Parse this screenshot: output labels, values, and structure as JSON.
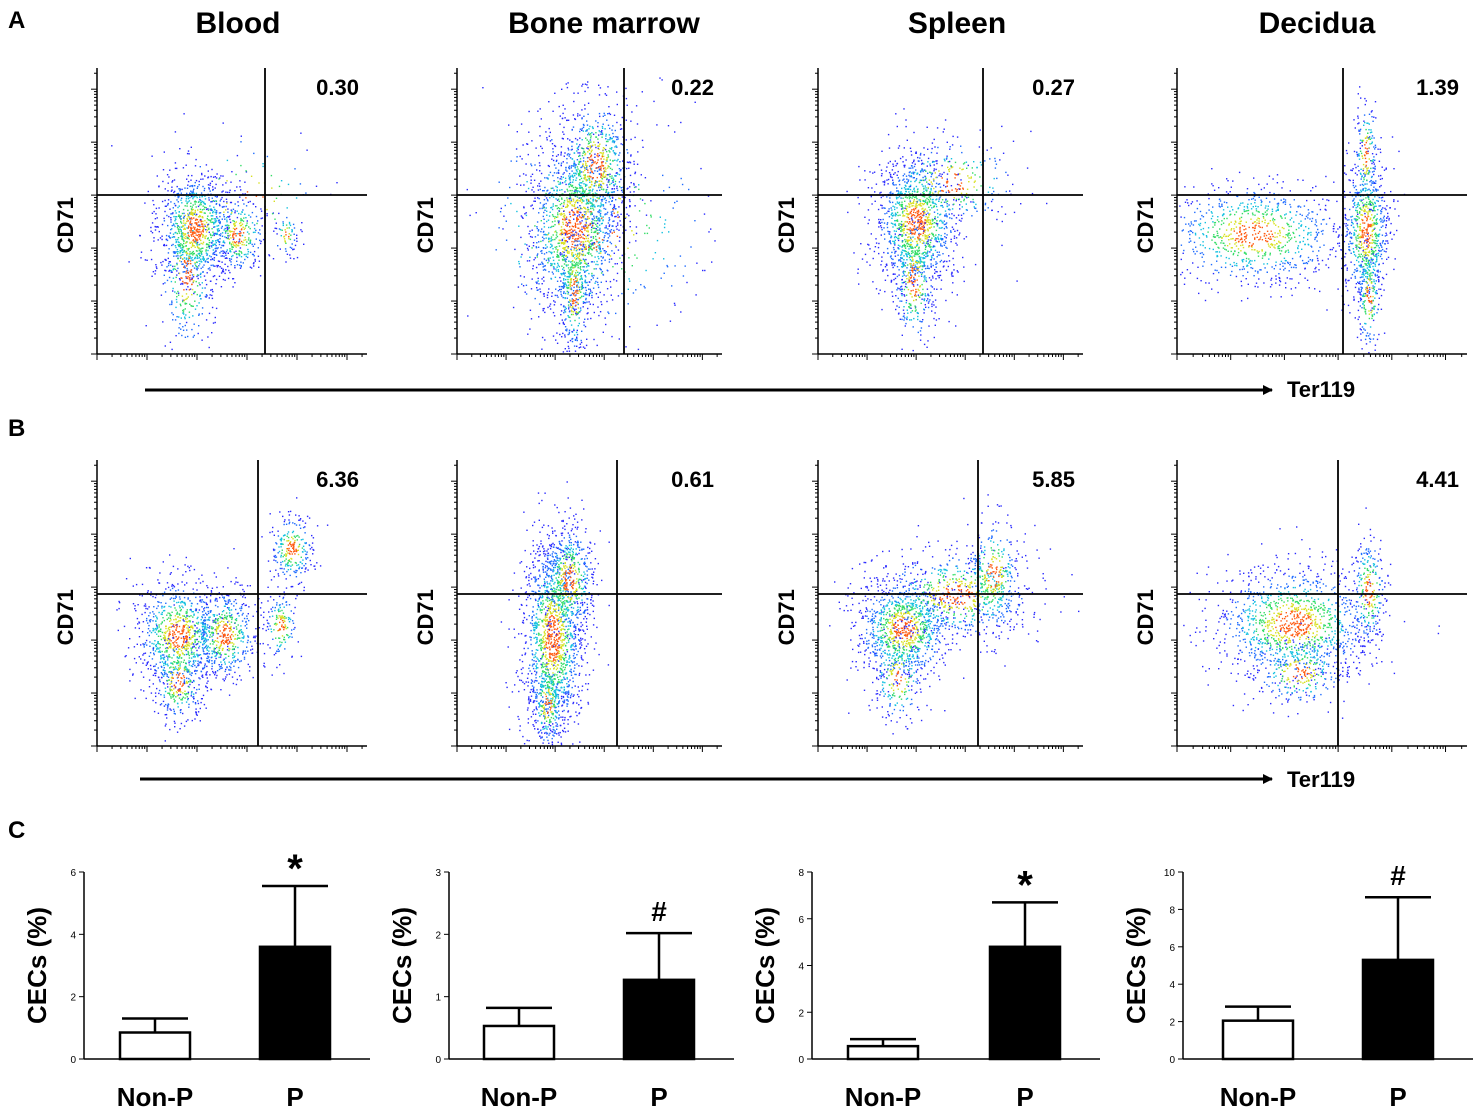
{
  "column_titles": [
    "Blood",
    "Bone marrow",
    "Spleen",
    "Decidua"
  ],
  "panel_labels": {
    "a": "A",
    "b": "B",
    "c": "C"
  },
  "flow": {
    "x_axis_label": "Ter119",
    "y_axis_label": "CD71",
    "row_a_values": [
      "0.30",
      "0.22",
      "0.27",
      "1.39"
    ],
    "row_b_values": [
      "6.36",
      "0.61",
      "5.85",
      "4.41"
    ]
  },
  "colors": {
    "bar_nonp": "#ffffff",
    "bar_p": "#000000",
    "stroke": "#000000",
    "density_low": "#1a1aff",
    "density_mid": "#22cc88",
    "density_high": "#ff4400"
  },
  "chart_data": [
    {
      "type": "bar",
      "tissue": "Blood",
      "categories": [
        "Non-P",
        "P"
      ],
      "values": [
        0.85,
        3.6
      ],
      "errors": [
        0.45,
        1.95
      ],
      "significance": [
        "",
        "*"
      ],
      "ylabel": "CECs (%)",
      "ylim": [
        0,
        6
      ],
      "yticks": [
        0,
        2,
        4,
        6
      ]
    },
    {
      "type": "bar",
      "tissue": "Bone marrow",
      "categories": [
        "Non-P",
        "P"
      ],
      "values": [
        0.53,
        1.27
      ],
      "errors": [
        0.29,
        0.75
      ],
      "significance": [
        "",
        "#"
      ],
      "ylabel": "CECs (%)",
      "ylim": [
        0,
        3
      ],
      "yticks": [
        0,
        1,
        2,
        3
      ]
    },
    {
      "type": "bar",
      "tissue": "Spleen",
      "categories": [
        "Non-P",
        "P"
      ],
      "values": [
        0.55,
        4.8
      ],
      "errors": [
        0.3,
        1.9
      ],
      "significance": [
        "",
        "*"
      ],
      "ylabel": "CECs (%)",
      "ylim": [
        0,
        8
      ],
      "yticks": [
        0,
        2,
        4,
        6,
        8
      ]
    },
    {
      "type": "bar",
      "tissue": "Decidua",
      "categories": [
        "Non-P",
        "P"
      ],
      "values": [
        2.05,
        5.3
      ],
      "errors": [
        0.75,
        3.35
      ],
      "significance": [
        "",
        "#"
      ],
      "ylabel": "CECs (%)",
      "ylim": [
        0,
        10
      ],
      "yticks": [
        0,
        2,
        4,
        6,
        8,
        10
      ]
    }
  ]
}
